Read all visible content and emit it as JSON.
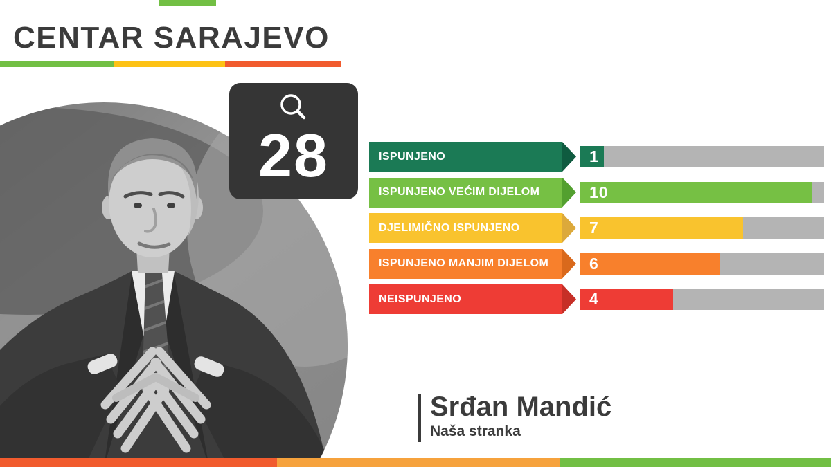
{
  "header": {
    "title": "CENTAR SARAJEVO",
    "underline_colors": [
      "#72BF44",
      "#FDC215",
      "#F15B2E"
    ],
    "top_tab_color": "#72BF44"
  },
  "badge": {
    "icon": "magnifier-icon",
    "total": "28",
    "background": "#353535"
  },
  "chart_data": {
    "type": "bar",
    "title": "",
    "xlabel": "",
    "ylabel": "",
    "categories": [
      "ISPUNJENO",
      "ISPUNJENO VEĆIM DIJELOM",
      "DJELIMIČNO ISPUNJENO",
      "ISPUNJENO MANJIM DIJELOM",
      "NEISPUNJENO"
    ],
    "values": [
      1,
      10,
      7,
      6,
      4
    ],
    "total": 28,
    "colors": [
      "#1B7A55",
      "#76C044",
      "#F9C32E",
      "#F8802C",
      "#EE3C35"
    ],
    "arrow_colors": [
      "#0F5B40",
      "#53A02F",
      "#DCA93B",
      "#D9691C",
      "#C62F27"
    ],
    "track_color": "#B4B4B4",
    "value_label_color": "#FFFFFF",
    "xlim": [
      0,
      10
    ],
    "legend": false,
    "grid": false,
    "orientation": "horizontal"
  },
  "person": {
    "name": "Srđan Mandić",
    "party": "Naša stranka"
  },
  "footer": {
    "stripe_colors": [
      "#F15B2E",
      "#F6A23C",
      "#72BF44"
    ]
  }
}
